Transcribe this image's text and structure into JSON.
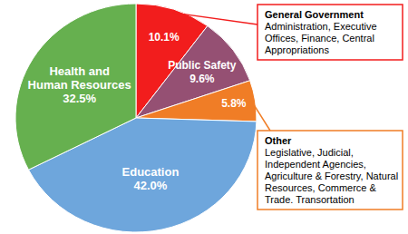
{
  "chart_data": {
    "type": "pie",
    "categories": [
      "General Government",
      "Public Safety",
      "Other",
      "Education",
      "Health and Human Resources"
    ],
    "values": [
      10.1,
      9.6,
      5.8,
      42.0,
      32.5
    ],
    "value_labels": [
      "10.1%",
      "9.6%",
      "5.8%",
      "42.0%",
      "32.5%"
    ],
    "descriptions": [
      "Administration, Executive Offices, Finance, Central Appropriations",
      null,
      "Legislative, Judicial, Independent Agencies, Agriculture & Forestry, Natural Resources, Commerce & Trade. Transortation",
      null,
      null
    ],
    "colors": [
      "#f21d1d",
      "#955073",
      "#f07d26",
      "#6ea6dc",
      "#66b04f"
    ],
    "data_labels": true
  }
}
